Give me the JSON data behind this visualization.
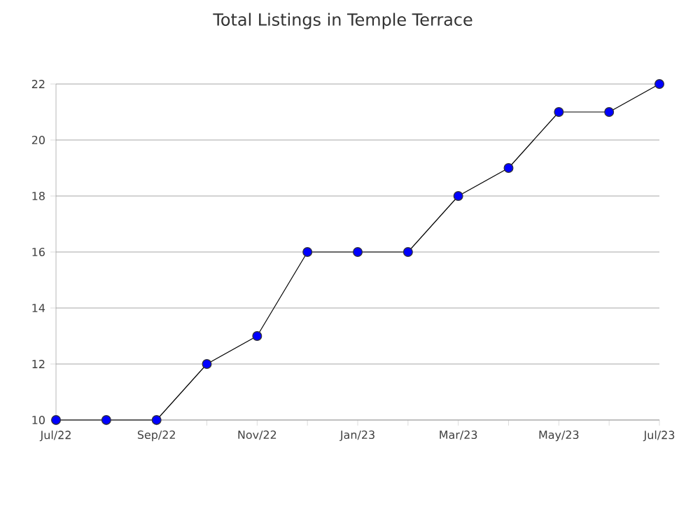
{
  "chart_data": {
    "type": "line",
    "title": "Total Listings in Temple Terrace",
    "categories": [
      "Jul/22",
      null,
      "Sep/22",
      null,
      "Nov/22",
      null,
      "Jan/23",
      null,
      "Mar/23",
      null,
      "May/23",
      null,
      "Jul/23"
    ],
    "series": [
      {
        "color": "#0000ff",
        "values": [
          10,
          10,
          10,
          12,
          13,
          16,
          16,
          16,
          18,
          19,
          21,
          21,
          22
        ]
      }
    ],
    "ylim": [
      10,
      22
    ],
    "yticks": [
      10,
      12,
      14,
      16,
      18,
      20,
      22
    ],
    "grid": "y",
    "marker": "circle",
    "line_style": "solid"
  }
}
